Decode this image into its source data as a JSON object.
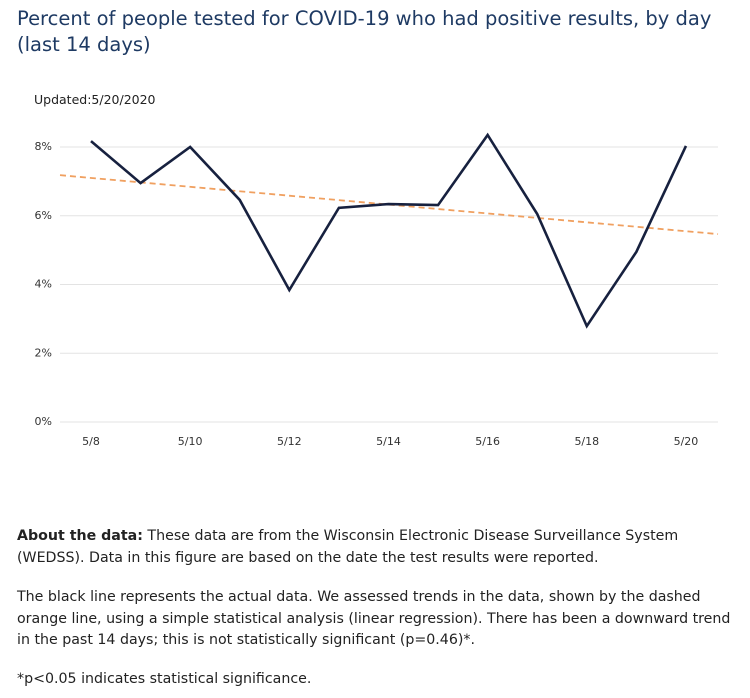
{
  "chart_data": {
    "type": "line",
    "title": "Percent of people tested for COVID-19 who had positive results, by day (last 14 days)",
    "subtitle": "Updated:5/20/2020",
    "categories": [
      "5/8",
      null,
      "5/10",
      null,
      "5/12",
      null,
      "5/14",
      null,
      "5/16",
      null,
      "5/18",
      null,
      "5/20"
    ],
    "series": [
      {
        "color": "#17213f",
        "values": [
          8.17,
          6.95,
          8.0,
          6.46,
          3.84,
          6.23,
          6.34,
          6.31,
          8.35,
          6.05,
          2.79,
          4.95,
          8.03
        ]
      }
    ],
    "trend": {
      "color": "#f0a060",
      "dashed": true,
      "start": 7.1,
      "end": 5.55
    },
    "ylim": [
      0,
      8.8
    ],
    "yticks": [
      {
        "value": 0,
        "label": "0%"
      },
      {
        "value": 2,
        "label": "2%"
      },
      {
        "value": 4,
        "label": "4%"
      },
      {
        "value": 6,
        "label": "6%"
      },
      {
        "value": 8,
        "label": "8%"
      }
    ],
    "grid": true
  },
  "notes": [
    {
      "label": "About the data:",
      "text": " These data are from the Wisconsin Electronic Disease Surveillance System (WEDSS). Data in this figure are based on the date the test results were reported."
    },
    {
      "text": "The black line represents the actual data. We assessed trends in the data, shown by the dashed orange line, using a simple statistical analysis (linear regression). There has been a downward trend in the past 14 days; this is not statistically significant (p=0.46)*."
    },
    {
      "text": "*p<0.05 indicates statistical significance."
    }
  ]
}
